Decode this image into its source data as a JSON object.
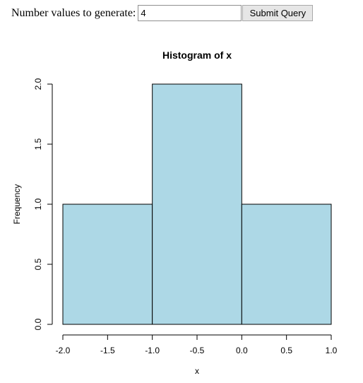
{
  "form": {
    "prompt_label": "Number values to generate:",
    "input_value": "4",
    "submit_label": "Submit Query"
  },
  "chart_data": {
    "type": "bar",
    "title": "Histogram of x",
    "xlabel": "x",
    "ylabel": "Frequency",
    "bins": [
      {
        "from": -2.0,
        "to": -1.0,
        "count": 1
      },
      {
        "from": -1.0,
        "to": 0.0,
        "count": 2
      },
      {
        "from": 0.0,
        "to": 1.0,
        "count": 1
      }
    ],
    "xlim": [
      -2.0,
      1.0
    ],
    "ylim": [
      0,
      2
    ],
    "x_ticks": [
      -2.0,
      -1.5,
      -1.0,
      -0.5,
      0.0,
      0.5,
      1.0
    ],
    "x_tick_labels": [
      "-2.0",
      "-1.5",
      "-1.0",
      "-0.5",
      "0.0",
      "0.5",
      "1.0"
    ],
    "y_ticks": [
      0.0,
      0.5,
      1.0,
      1.5,
      2.0
    ],
    "y_tick_labels": [
      "0.0",
      "0.5",
      "1.0",
      "1.5",
      "2.0"
    ],
    "bar_color": "#add8e6",
    "grid": false,
    "legend": "none"
  }
}
